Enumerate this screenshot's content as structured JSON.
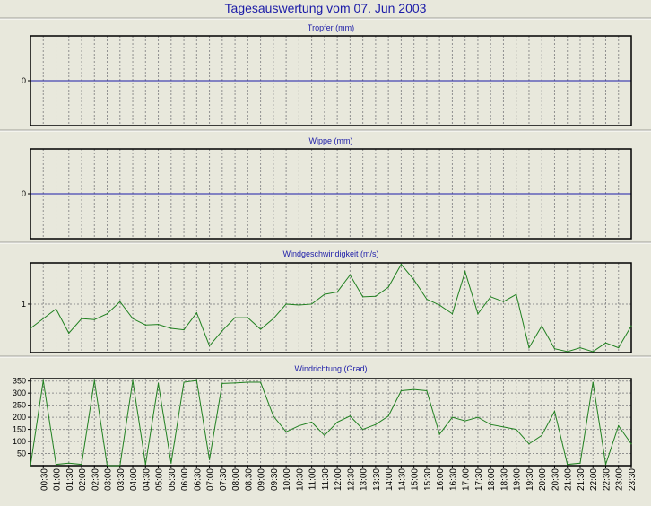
{
  "title": "Tagesauswertung vom 07. Jun 2003",
  "x_ticks": [
    "00:30",
    "01:00",
    "01:30",
    "02:00",
    "02:30",
    "03:00",
    "03:30",
    "04:00",
    "04:30",
    "05:00",
    "05:30",
    "06:00",
    "06:30",
    "07:00",
    "07:30",
    "08:00",
    "08:30",
    "09:00",
    "09:30",
    "10:00",
    "10:30",
    "11:00",
    "11:30",
    "12:00",
    "12:30",
    "13:00",
    "13:30",
    "14:00",
    "14:30",
    "15:00",
    "15:30",
    "16:00",
    "16:30",
    "17:00",
    "17:30",
    "18:00",
    "18:30",
    "19:00",
    "19:30",
    "20:00",
    "20:30",
    "21:00",
    "21:30",
    "22:00",
    "22:30",
    "23:00",
    "23:30"
  ],
  "colors": {
    "title": "#1c1ca8",
    "zero_line": "#1c1ca8",
    "series": "#208020",
    "grid": "#909090",
    "panel_bg": "#e8e8dc"
  },
  "chart_data": [
    {
      "type": "line",
      "title": "Tropfer (mm)",
      "x_range": [
        "00:00",
        "23:30"
      ],
      "y_ticks": [
        0
      ],
      "series": [
        {
          "values": []
        }
      ],
      "zero_line": true,
      "grid": true
    },
    {
      "type": "line",
      "title": "Wippe (mm)",
      "x_range": [
        "00:00",
        "23:30"
      ],
      "y_ticks": [
        0
      ],
      "series": [
        {
          "values": []
        }
      ],
      "zero_line": true,
      "grid": true
    },
    {
      "type": "line",
      "title": "Windgeschwindigkeit (m/s)",
      "x_range": [
        "00:00",
        "23:30"
      ],
      "ylim": [
        0,
        1.85
      ],
      "y_ticks": [
        1
      ],
      "x": [
        "00:00",
        "00:30",
        "01:00",
        "01:30",
        "02:00",
        "02:30",
        "03:00",
        "03:30",
        "04:00",
        "04:30",
        "05:00",
        "05:30",
        "06:00",
        "06:30",
        "07:00",
        "07:30",
        "08:00",
        "08:30",
        "09:00",
        "09:30",
        "10:00",
        "10:30",
        "11:00",
        "11:30",
        "12:00",
        "12:30",
        "13:00",
        "13:30",
        "14:00",
        "14:30",
        "15:00",
        "15:30",
        "16:00",
        "16:30",
        "17:00",
        "17:30",
        "18:00",
        "18:30",
        "19:00",
        "19:30",
        "20:00",
        "20:30",
        "21:00",
        "21:30",
        "22:00",
        "22:30",
        "23:00",
        "23:30"
      ],
      "series": [
        {
          "values": [
            0.5,
            0.7,
            0.9,
            0.4,
            0.7,
            0.68,
            0.8,
            1.05,
            0.7,
            0.57,
            0.58,
            0.5,
            0.47,
            0.82,
            0.14,
            0.45,
            0.72,
            0.72,
            0.48,
            0.7,
            1.0,
            0.98,
            1.0,
            1.2,
            1.25,
            1.6,
            1.15,
            1.16,
            1.35,
            1.82,
            1.5,
            1.1,
            0.98,
            0.8,
            1.67,
            0.8,
            1.15,
            1.05,
            1.2,
            0.1,
            0.55,
            0.08,
            0.02,
            0.1,
            0.02,
            0.2,
            0.1,
            0.55
          ]
        }
      ],
      "grid": true
    },
    {
      "type": "line",
      "title": "Windrichtung (Grad)",
      "x_range": [
        "00:00",
        "23:30"
      ],
      "ylim": [
        0,
        360
      ],
      "y_ticks": [
        50,
        100,
        150,
        200,
        250,
        300,
        350
      ],
      "x": [
        "00:00",
        "00:30",
        "01:00",
        "01:30",
        "02:00",
        "02:30",
        "03:00",
        "03:30",
        "04:00",
        "04:30",
        "05:00",
        "05:30",
        "06:00",
        "06:30",
        "07:00",
        "07:30",
        "08:00",
        "08:30",
        "09:00",
        "09:30",
        "10:00",
        "10:30",
        "11:00",
        "11:30",
        "12:00",
        "12:30",
        "13:00",
        "13:30",
        "14:00",
        "14:30",
        "15:00",
        "15:30",
        "16:00",
        "16:30",
        "17:00",
        "17:30",
        "18:00",
        "18:30",
        "19:00",
        "19:30",
        "20:00",
        "20:30",
        "21:00",
        "21:30",
        "22:00",
        "22:30",
        "23:00",
        "23:30"
      ],
      "series": [
        {
          "values": [
            0,
            352,
            5,
            10,
            5,
            352,
            0,
            0,
            352,
            5,
            340,
            10,
            345,
            352,
            25,
            340,
            342,
            345,
            345,
            205,
            140,
            165,
            180,
            125,
            180,
            205,
            150,
            170,
            205,
            310,
            315,
            310,
            130,
            200,
            185,
            200,
            170,
            160,
            150,
            90,
            125,
            225,
            5,
            10,
            345,
            5,
            165,
            90
          ]
        }
      ],
      "grid": true
    }
  ]
}
